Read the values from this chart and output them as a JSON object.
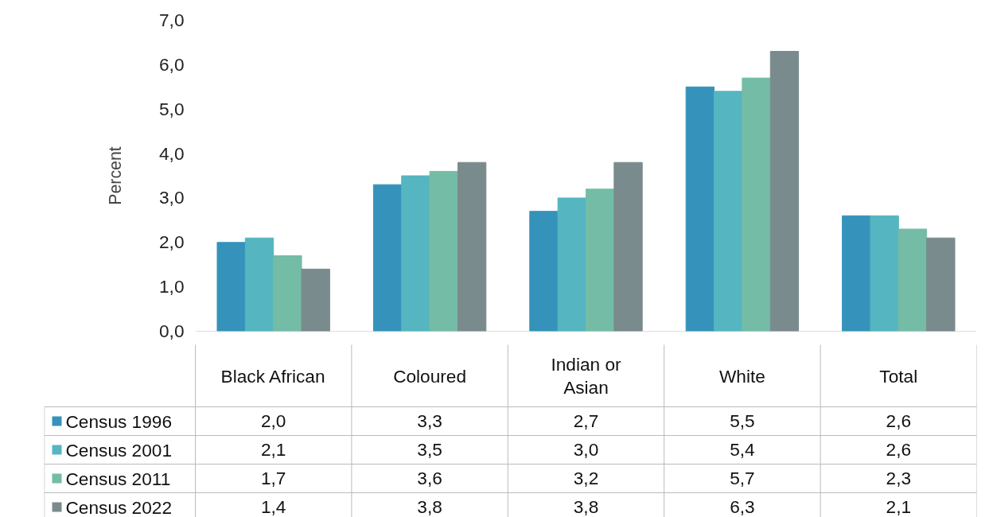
{
  "chart_data": {
    "type": "bar",
    "ylabel": "Percent",
    "categories": [
      "Black African",
      "Coloured",
      "Indian or Asian",
      "White",
      "Total"
    ],
    "series": [
      {
        "name": "Census 1996",
        "color": "#3593bb",
        "values": [
          2.0,
          3.3,
          2.7,
          5.5,
          2.6
        ],
        "value_labels": [
          "2,0",
          "3,3",
          "2,7",
          "5,5",
          "2,6"
        ]
      },
      {
        "name": "Census 2001",
        "color": "#55b5c0",
        "values": [
          2.1,
          3.5,
          3.0,
          5.4,
          2.6
        ],
        "value_labels": [
          "2,1",
          "3,5",
          "3,0",
          "5,4",
          "2,6"
        ]
      },
      {
        "name": "Census 2011",
        "color": "#74bca6",
        "values": [
          1.7,
          3.6,
          3.2,
          5.7,
          2.3
        ],
        "value_labels": [
          "1,7",
          "3,6",
          "3,2",
          "5,7",
          "2,3"
        ]
      },
      {
        "name": "Census 2022",
        "color": "#7a8b8d",
        "values": [
          1.4,
          3.8,
          3.8,
          6.3,
          2.1
        ],
        "value_labels": [
          "1,4",
          "3,8",
          "3,8",
          "6,3",
          "2,1"
        ]
      }
    ],
    "ylim": [
      0,
      7
    ],
    "yticks": [
      {
        "value": 0,
        "label": "0,0"
      },
      {
        "value": 1,
        "label": "1,0"
      },
      {
        "value": 2,
        "label": "2,0"
      },
      {
        "value": 3,
        "label": "3,0"
      },
      {
        "value": 4,
        "label": "4,0"
      },
      {
        "value": 5,
        "label": "5,0"
      },
      {
        "value": 6,
        "label": "6,0"
      },
      {
        "value": 7,
        "label": "7,0"
      }
    ],
    "legend": "bottom"
  }
}
